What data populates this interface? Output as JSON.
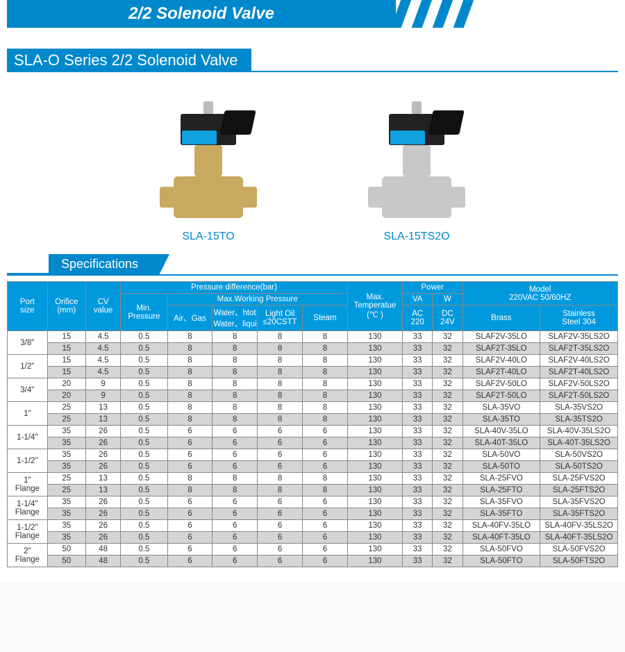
{
  "colors": {
    "primary": "#0088cc",
    "header_bg": "#0099dd",
    "alt_row": "#d5d5d5",
    "text": "#333333",
    "border": "#888888"
  },
  "top_title": "2/2 Solenoid Valve",
  "series_title": "SLA-O Series 2/2 Solenoid Valve",
  "products": [
    {
      "label": "SLA-15TO",
      "material": "brass"
    },
    {
      "label": "SLA-15TS2O",
      "material": "steel"
    }
  ],
  "spec_tab": "Specifications",
  "headers": {
    "port": "Port\nsize",
    "orifice": "Orifice\n(mm)",
    "cv": "CV\nvalue",
    "pressure_group": "Pressure difference(bar)",
    "min_pressure": "Min.\nPressure",
    "max_working": "Max.Working Pressure",
    "air": "Air、Gas",
    "water": "Water、htot\nWater、liquid",
    "oil": "Light Oil\n≤20CSTT",
    "steam": "Steam",
    "temp": "Max.\nTemperatue\n(℃ )",
    "power": "Power",
    "va": "VA",
    "w": "W",
    "ac": "AC\n220",
    "dc": "DC\n24V",
    "model": "Model\n220VAC 50/60HZ",
    "brass": "Brass",
    "ss": "Stainless\nSteel 304"
  },
  "groups": [
    {
      "port": "3/8\"",
      "rows": [
        {
          "orifice": 15,
          "cv": 4.5,
          "min": 0.5,
          "air": 8,
          "water": 8,
          "oil": 8,
          "steam": 8,
          "temp": 130,
          "va": 33,
          "w": 32,
          "brass": "SLAF2V-35LO",
          "ss": "SLAF2V-35LS2O"
        },
        {
          "orifice": 15,
          "cv": 4.5,
          "min": 0.5,
          "air": 8,
          "water": 8,
          "oil": 8,
          "steam": 8,
          "temp": 130,
          "va": 33,
          "w": 32,
          "brass": "SLAF2T-35LO",
          "ss": "SLAF2T-35LS2O"
        }
      ]
    },
    {
      "port": "1/2\"",
      "rows": [
        {
          "orifice": 15,
          "cv": 4.5,
          "min": 0.5,
          "air": 8,
          "water": 8,
          "oil": 8,
          "steam": 8,
          "temp": 130,
          "va": 33,
          "w": 32,
          "brass": "SLAF2V-40LO",
          "ss": "SLAF2V-40LS2O"
        },
        {
          "orifice": 15,
          "cv": 4.5,
          "min": 0.5,
          "air": 8,
          "water": 8,
          "oil": 8,
          "steam": 8,
          "temp": 130,
          "va": 33,
          "w": 32,
          "brass": "SLAF2T-40LO",
          "ss": "SLAF2T-40LS2O"
        }
      ]
    },
    {
      "port": "3/4\"",
      "rows": [
        {
          "orifice": 20,
          "cv": 9.0,
          "min": 0.5,
          "air": 8,
          "water": 8,
          "oil": 8,
          "steam": 8,
          "temp": 130,
          "va": 33,
          "w": 32,
          "brass": "SLAF2V-50LO",
          "ss": "SLAF2V-50LS2O"
        },
        {
          "orifice": 20,
          "cv": 9.0,
          "min": 0.5,
          "air": 8,
          "water": 8,
          "oil": 8,
          "steam": 8,
          "temp": 130,
          "va": 33,
          "w": 32,
          "brass": "SLAF2T-50LO",
          "ss": "SLAF2T-50LS2O"
        }
      ]
    },
    {
      "port": "1\"",
      "rows": [
        {
          "orifice": 25,
          "cv": 13,
          "min": 0.5,
          "air": 8,
          "water": 8,
          "oil": 8,
          "steam": 8,
          "temp": 130,
          "va": 33,
          "w": 32,
          "brass": "SLA-35VO",
          "ss": "SLA-35VS2O"
        },
        {
          "orifice": 25,
          "cv": 13,
          "min": 0.5,
          "air": 8,
          "water": 8,
          "oil": 8,
          "steam": 8,
          "temp": 130,
          "va": 33,
          "w": 32,
          "brass": "SLA-35TO",
          "ss": "SLA-35TS2O"
        }
      ]
    },
    {
      "port": "1-1/4\"",
      "rows": [
        {
          "orifice": 35,
          "cv": 26,
          "min": 0.5,
          "air": 6,
          "water": 6,
          "oil": 6,
          "steam": 6,
          "temp": 130,
          "va": 33,
          "w": 32,
          "brass": "SLA-40V-35LO",
          "ss": "SLA-40V-35LS2O"
        },
        {
          "orifice": 35,
          "cv": 26,
          "min": 0.5,
          "air": 6,
          "water": 6,
          "oil": 6,
          "steam": 6,
          "temp": 130,
          "va": 33,
          "w": 32,
          "brass": "SLA-40T-35LO",
          "ss": "SLA-40T-35LS2O"
        }
      ]
    },
    {
      "port": "1-1/2\"",
      "rows": [
        {
          "orifice": 35,
          "cv": 26,
          "min": 0.5,
          "air": 6,
          "water": 6,
          "oil": 6,
          "steam": 6,
          "temp": 130,
          "va": 33,
          "w": 32,
          "brass": "SLA-50VO",
          "ss": "SLA-50VS2O"
        },
        {
          "orifice": 35,
          "cv": 26,
          "min": 0.5,
          "air": 6,
          "water": 6,
          "oil": 6,
          "steam": 6,
          "temp": 130,
          "va": 33,
          "w": 32,
          "brass": "SLA-50TO",
          "ss": "SLA-50TS2O"
        }
      ]
    },
    {
      "port": "1\"\nFlange",
      "rows": [
        {
          "orifice": 25,
          "cv": 13,
          "min": 0.5,
          "air": 8,
          "water": 8,
          "oil": 8,
          "steam": 8,
          "temp": 130,
          "va": 33,
          "w": 32,
          "brass": "SLA-25FVO",
          "ss": "SLA-25FVS2O"
        },
        {
          "orifice": 25,
          "cv": 13,
          "min": 0.5,
          "air": 8,
          "water": 8,
          "oil": 8,
          "steam": 8,
          "temp": 130,
          "va": 33,
          "w": 32,
          "brass": "SLA-25FTO",
          "ss": "SLA-25FTS2O"
        }
      ]
    },
    {
      "port": "1-1/4\"\nFlange",
      "rows": [
        {
          "orifice": 35,
          "cv": 26,
          "min": 0.5,
          "air": 6,
          "water": 6,
          "oil": 6,
          "steam": 6,
          "temp": 130,
          "va": 33,
          "w": 32,
          "brass": "SLA-35FVO",
          "ss": "SLA-35FVS2O"
        },
        {
          "orifice": 35,
          "cv": 26,
          "min": 0.5,
          "air": 6,
          "water": 6,
          "oil": 6,
          "steam": 6,
          "temp": 130,
          "va": 33,
          "w": 32,
          "brass": "SLA-35FTO",
          "ss": "SLA-35FTS2O"
        }
      ]
    },
    {
      "port": "1-1/2\"\nFlange",
      "rows": [
        {
          "orifice": 35,
          "cv": 26,
          "min": 0.5,
          "air": 6,
          "water": 6,
          "oil": 6,
          "steam": 6,
          "temp": 130,
          "va": 33,
          "w": 32,
          "brass": "SLA-40FV-35LO",
          "ss": "SLA-40FV-35LS2O"
        },
        {
          "orifice": 35,
          "cv": 26,
          "min": 0.5,
          "air": 6,
          "water": 6,
          "oil": 6,
          "steam": 6,
          "temp": 130,
          "va": 33,
          "w": 32,
          "brass": "SLA-40FT-35LO",
          "ss": "SLA-40FT-35LS2O"
        }
      ]
    },
    {
      "port": "2\"\nFlange",
      "rows": [
        {
          "orifice": 50,
          "cv": 48,
          "min": 0.5,
          "air": 6,
          "water": 6,
          "oil": 6,
          "steam": 6,
          "temp": 130,
          "va": 33,
          "w": 32,
          "brass": "SLA-50FVO",
          "ss": "SLA-50FVS2O"
        },
        {
          "orifice": 50,
          "cv": 48,
          "min": 0.5,
          "air": 6,
          "water": 6,
          "oil": 6,
          "steam": 6,
          "temp": 130,
          "va": 33,
          "w": 32,
          "brass": "SLA-50FTO",
          "ss": "SLA-50FTS2O"
        }
      ]
    }
  ]
}
